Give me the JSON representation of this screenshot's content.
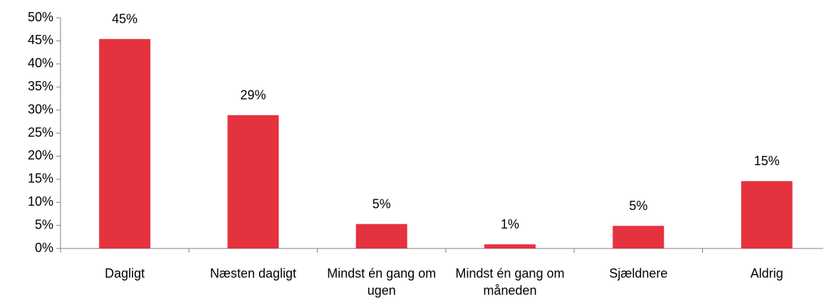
{
  "chart_data": {
    "type": "bar",
    "categories": [
      "Dagligt",
      "Næsten dagligt",
      "Mindst én gang om ugen",
      "Mindst én gang om måneden",
      "Sjældnere",
      "Aldrig"
    ],
    "values": [
      45.4,
      28.9,
      5.3,
      0.9,
      4.9,
      14.6
    ],
    "value_labels": [
      "45%",
      "29%",
      "5%",
      "1%",
      "5%",
      "15%"
    ],
    "color": "#e5323f",
    "ylim": [
      0,
      50
    ],
    "yticks": [
      {
        "value": 0,
        "label": "0%"
      },
      {
        "value": 5,
        "label": "5%"
      },
      {
        "value": 10,
        "label": "10%"
      },
      {
        "value": 15,
        "label": "15%"
      },
      {
        "value": 20,
        "label": "20%"
      },
      {
        "value": 25,
        "label": "25%"
      },
      {
        "value": 30,
        "label": "30%"
      },
      {
        "value": 35,
        "label": "35%"
      },
      {
        "value": 40,
        "label": "40%"
      },
      {
        "value": 45,
        "label": "45%"
      },
      {
        "value": 50,
        "label": "50%"
      }
    ],
    "grid": false
  }
}
